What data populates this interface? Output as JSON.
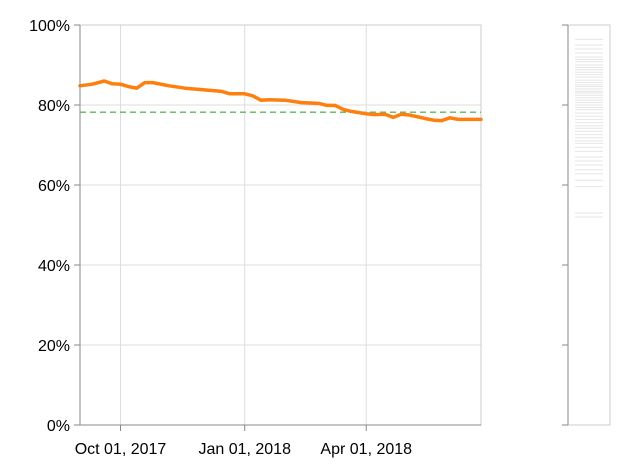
{
  "chart_data": {
    "type": "line",
    "title": "",
    "xlabel": "",
    "ylabel": "",
    "ylim": [
      0,
      1
    ],
    "grid": true,
    "x_range": [
      "2017-09-01",
      "2018-06-25"
    ],
    "y_ticks": [
      {
        "value": 0,
        "label": "0%"
      },
      {
        "value": 0.2,
        "label": "20%"
      },
      {
        "value": 0.4,
        "label": "40%"
      },
      {
        "value": 0.6,
        "label": "60%"
      },
      {
        "value": 0.8,
        "label": "80%"
      },
      {
        "value": 1.0,
        "label": "100%"
      }
    ],
    "x_ticks": [
      {
        "date": "2017-10-01",
        "label": "Oct 01, 2017"
      },
      {
        "date": "2018-01-01",
        "label": "Jan 01, 2018"
      },
      {
        "date": "2018-04-01",
        "label": "Apr 01, 2018"
      }
    ],
    "series": [
      {
        "color": "#ff7f0e",
        "points": [
          {
            "x": "2017-09-01",
            "y": 0.848
          },
          {
            "x": "2017-09-10",
            "y": 0.852
          },
          {
            "x": "2017-09-19",
            "y": 0.86
          },
          {
            "x": "2017-09-25",
            "y": 0.853
          },
          {
            "x": "2017-10-01",
            "y": 0.852
          },
          {
            "x": "2017-10-07",
            "y": 0.846
          },
          {
            "x": "2017-10-13",
            "y": 0.842
          },
          {
            "x": "2017-10-19",
            "y": 0.856
          },
          {
            "x": "2017-10-25",
            "y": 0.856
          },
          {
            "x": "2017-11-06",
            "y": 0.848
          },
          {
            "x": "2017-11-18",
            "y": 0.842
          },
          {
            "x": "2017-12-01",
            "y": 0.838
          },
          {
            "x": "2017-12-15",
            "y": 0.834
          },
          {
            "x": "2017-12-21",
            "y": 0.828
          },
          {
            "x": "2018-01-01",
            "y": 0.828
          },
          {
            "x": "2018-01-07",
            "y": 0.823
          },
          {
            "x": "2018-01-13",
            "y": 0.812
          },
          {
            "x": "2018-01-19",
            "y": 0.813
          },
          {
            "x": "2018-01-31",
            "y": 0.812
          },
          {
            "x": "2018-02-12",
            "y": 0.806
          },
          {
            "x": "2018-02-25",
            "y": 0.804
          },
          {
            "x": "2018-03-03",
            "y": 0.799
          },
          {
            "x": "2018-03-09",
            "y": 0.799
          },
          {
            "x": "2018-03-15",
            "y": 0.789
          },
          {
            "x": "2018-03-21",
            "y": 0.784
          },
          {
            "x": "2018-04-01",
            "y": 0.778
          },
          {
            "x": "2018-04-07",
            "y": 0.776
          },
          {
            "x": "2018-04-15",
            "y": 0.777
          },
          {
            "x": "2018-04-21",
            "y": 0.769
          },
          {
            "x": "2018-04-27",
            "y": 0.777
          },
          {
            "x": "2018-05-03",
            "y": 0.775
          },
          {
            "x": "2018-05-15",
            "y": 0.766
          },
          {
            "x": "2018-05-21",
            "y": 0.762
          },
          {
            "x": "2018-05-27",
            "y": 0.761
          },
          {
            "x": "2018-06-02",
            "y": 0.768
          },
          {
            "x": "2018-06-08",
            "y": 0.764
          },
          {
            "x": "2018-06-25",
            "y": 0.764
          }
        ]
      }
    ],
    "reference_line": {
      "y": 0.782,
      "color": "#5cb85c",
      "style": "dashed"
    },
    "distribution_strip": {
      "color": "#e6e6e6",
      "values": [
        0.964,
        0.95,
        0.94,
        0.93,
        0.92,
        0.914,
        0.908,
        0.9,
        0.894,
        0.888,
        0.882,
        0.876,
        0.87,
        0.862,
        0.856,
        0.85,
        0.846,
        0.84,
        0.834,
        0.83,
        0.824,
        0.818,
        0.812,
        0.806,
        0.8,
        0.794,
        0.788,
        0.78,
        0.772,
        0.764,
        0.756,
        0.748,
        0.742,
        0.734,
        0.726,
        0.718,
        0.71,
        0.704,
        0.694,
        0.684,
        0.67,
        0.66,
        0.65,
        0.638,
        0.628,
        0.612,
        0.596,
        0.53,
        0.52
      ]
    }
  }
}
